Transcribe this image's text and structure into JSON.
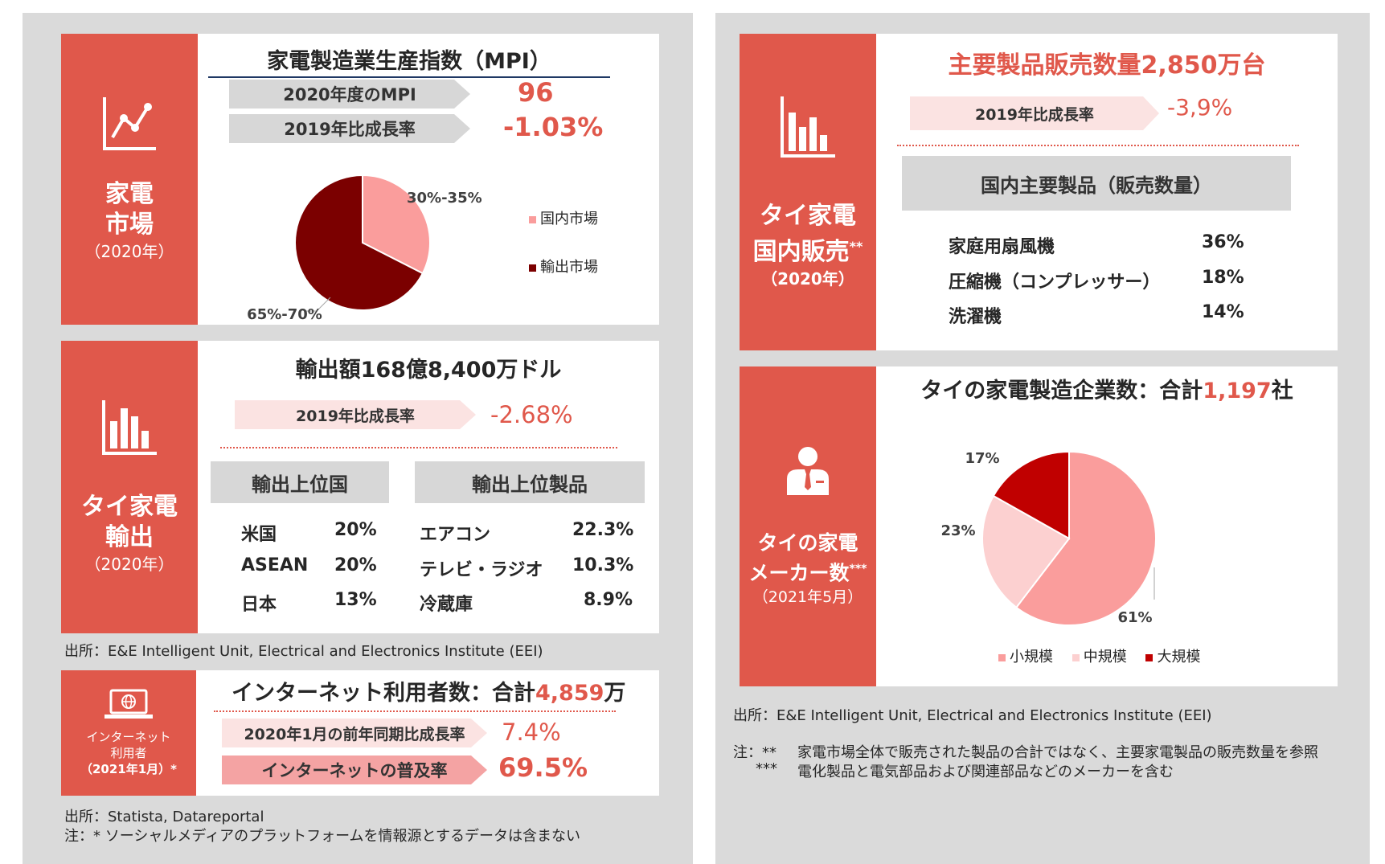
{
  "panels": {
    "left": {
      "market": {
        "side_title_1": "家電",
        "side_title_2": "市場",
        "side_sub": "（2020年）",
        "icon": "line-chart-icon",
        "title": "家電製造業生産指数（MPI）",
        "mpi_label": "2020年度のMPI",
        "mpi_value": "96",
        "growth_label": "2019年比成長率",
        "growth_value": "-1.03%",
        "chart_data": {
          "type": "pie",
          "labels": [
            "30%-35%",
            "65%-70%"
          ],
          "legend": [
            "国内市場",
            "輸出市場"
          ],
          "values": [
            32.5,
            67.5
          ],
          "colors": [
            "#fa9d9c",
            "#7b0000"
          ]
        }
      },
      "export": {
        "side_title_1": "タイ家電",
        "side_title_2": "輸出",
        "side_sub": "（2020年）",
        "icon": "bar-chart-icon",
        "title": "輸出額168億8,400万ドル",
        "growth_label": "2019年比成長率",
        "growth_value": "-2.68%",
        "countries_header": "輸出上位国",
        "products_header": "輸出上位製品",
        "countries": [
          {
            "name": "米国",
            "value": "20%"
          },
          {
            "name": "ASEAN",
            "value": "20%"
          },
          {
            "name": "日本",
            "value": "13%"
          }
        ],
        "products": [
          {
            "name": "エアコン",
            "value": "22.3%"
          },
          {
            "name": "テレビ・ラジオ",
            "value": "10.3%"
          },
          {
            "name": "冷蔵庫",
            "value": "8.9%"
          }
        ]
      },
      "source1": "出所：E&E Intelligent Unit, Electrical and Electronics Institute (EEI)",
      "internet": {
        "side_line_1": "インターネット",
        "side_line_2": "利用者",
        "side_line_3": "（2021年1月）*",
        "icon": "laptop-globe-icon",
        "title_prefix": "インターネット利用者数：合計",
        "title_value": "4,859",
        "title_suffix": "万",
        "growth_label": "2020年1月の前年同期比成長率",
        "growth_value": "7.4%",
        "penetration_label": "インターネットの普及率",
        "penetration_value": "69.5%"
      },
      "source2": "出所：Statista, Datareportal",
      "note2": "注：* ソーシャルメディアのプラットフォームを情報源とするデータは含まない"
    },
    "right": {
      "sales": {
        "side_title_1": "タイ家電",
        "side_title_2": "国内販売",
        "side_title_sup": "**",
        "side_sub": "（2020年）",
        "icon": "bar-chart-icon",
        "title": "主要製品販売数量2,850万台",
        "growth_label": "2019年比成長率",
        "growth_value": "-3,9%",
        "products_header": "国内主要製品（販売数量）",
        "products": [
          {
            "name": "家庭用扇風機",
            "value": "36%"
          },
          {
            "name": "圧縮機（コンプレッサー）",
            "value": "18%"
          },
          {
            "name": "洗濯機",
            "value": "14%"
          }
        ]
      },
      "makers": {
        "side_title_1": "タイの家電",
        "side_title_2": "メーカー数",
        "side_title_sup": "***",
        "side_sub": "（2021年5月）",
        "icon": "businessman-icon",
        "title_prefix": "タイの家電製造企業数：合計",
        "title_value": "1,197",
        "title_suffix": "社",
        "chart_data": {
          "type": "pie",
          "labels": [
            "61%",
            "23%",
            "17%"
          ],
          "legend": [
            "小規模",
            "中規模",
            "大規模"
          ],
          "values": [
            61,
            23,
            17
          ],
          "colors": [
            "#fa9d9c",
            "#fcd0d0",
            "#c00000"
          ]
        }
      },
      "source": "出所：E&E Intelligent Unit, Electrical and Electronics Institute (EEI)",
      "note_mark_1": "注：**",
      "note_text_1": "家電市場全体で販売された製品の合計ではなく、主要家電製品の販売数量を参照",
      "note_mark_2": "***",
      "note_text_2": "電化製品と電気部品および関連部品などのメーカーを含む"
    }
  }
}
